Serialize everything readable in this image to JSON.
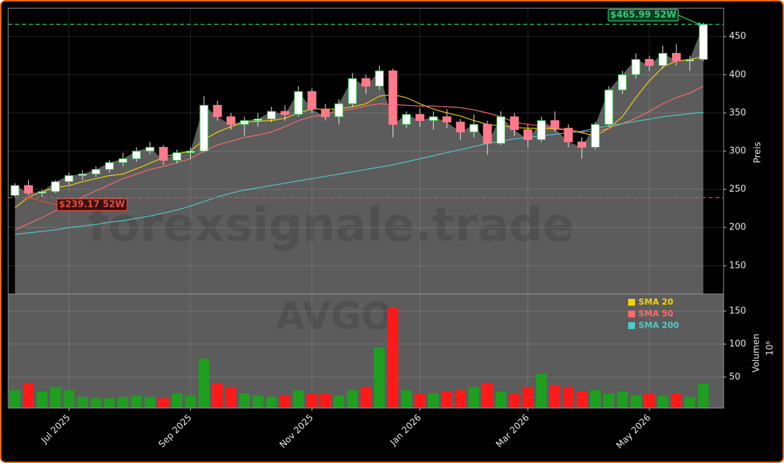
{
  "chart_data": [
    {
      "type": "candlestick",
      "watermark": "forexsignale.trade",
      "y_label": "Preis",
      "ylim": [
        113,
        487
      ],
      "yticks": [
        150,
        200,
        250,
        300,
        350,
        400,
        450
      ],
      "grid": true,
      "up_color": "#2fbf4a",
      "down_color": "#ff7a8a",
      "area_color": "#5c5c5c",
      "open": [
        242,
        255,
        245,
        247,
        260,
        268,
        270,
        276,
        285,
        290,
        300,
        305,
        288,
        298,
        300,
        360,
        345,
        335,
        340,
        342,
        352,
        348,
        378,
        355,
        345,
        362,
        395,
        385,
        405,
        335,
        348,
        340,
        345,
        338,
        325,
        335,
        310,
        345,
        328,
        315,
        340,
        330,
        312,
        305,
        335,
        380,
        400,
        420,
        412,
        428,
        418,
        420,
        null
      ],
      "high": [
        258,
        262,
        250,
        262,
        272,
        275,
        280,
        288,
        298,
        305,
        312,
        308,
        302,
        305,
        372,
        366,
        350,
        345,
        350,
        358,
        360,
        385,
        382,
        362,
        368,
        402,
        400,
        412,
        408,
        352,
        356,
        352,
        355,
        342,
        348,
        340,
        352,
        350,
        335,
        345,
        352,
        335,
        318,
        338,
        385,
        405,
        428,
        425,
        438,
        440,
        425,
        468,
        null
      ],
      "low": [
        240,
        242,
        240,
        245,
        256,
        262,
        266,
        272,
        280,
        286,
        296,
        282,
        284,
        290,
        298,
        340,
        328,
        320,
        332,
        338,
        340,
        345,
        350,
        340,
        335,
        358,
        375,
        380,
        318,
        330,
        332,
        328,
        330,
        315,
        318,
        295,
        308,
        320,
        305,
        312,
        325,
        305,
        290,
        302,
        332,
        375,
        395,
        405,
        408,
        412,
        405,
        418,
        null
      ],
      "close": [
        255,
        245,
        247,
        260,
        268,
        270,
        276,
        285,
        290,
        300,
        305,
        288,
        298,
        300,
        360,
        345,
        335,
        340,
        342,
        352,
        348,
        378,
        355,
        345,
        362,
        395,
        385,
        405,
        335,
        348,
        340,
        345,
        338,
        325,
        335,
        310,
        345,
        328,
        315,
        340,
        330,
        312,
        305,
        335,
        380,
        400,
        420,
        412,
        428,
        418,
        420,
        466,
        null
      ],
      "series": [
        {
          "name": "SMA 20",
          "color": "#f5d400",
          "values": [
            226,
            240,
            247,
            252,
            255,
            260,
            264,
            268,
            270,
            277,
            284,
            292,
            297,
            300,
            315,
            325,
            332,
            338,
            339,
            340,
            343,
            350,
            355,
            355,
            355,
            358,
            362,
            372,
            374,
            370,
            362,
            355,
            350,
            346,
            340,
            335,
            333,
            331,
            330,
            330,
            329,
            328,
            324,
            320,
            330,
            345,
            370,
            392,
            410,
            418,
            420,
            424,
            null
          ]
        },
        {
          "name": "SMA 50",
          "color": "#ff6b6b",
          "values": [
            197,
            205,
            213,
            222,
            230,
            240,
            248,
            256,
            264,
            270,
            276,
            280,
            285,
            290,
            300,
            308,
            313,
            318,
            321,
            325,
            332,
            340,
            345,
            348,
            352,
            355,
            359,
            362,
            361,
            360,
            359,
            359,
            358,
            357,
            354,
            350,
            345,
            338,
            335,
            333,
            330,
            328,
            325,
            326,
            330,
            336,
            343,
            352,
            362,
            370,
            376,
            385,
            null
          ]
        },
        {
          "name": "SMA 200",
          "color": "#4ecdc4",
          "values": [
            191,
            193,
            195,
            197,
            200,
            202,
            204,
            207,
            209,
            212,
            215,
            219,
            223,
            228,
            234,
            240,
            245,
            249,
            252,
            255,
            258,
            261,
            264,
            267,
            270,
            273,
            276,
            279,
            282,
            286,
            290,
            294,
            298,
            302,
            306,
            310,
            313,
            316,
            318,
            320,
            322,
            324,
            326,
            330,
            333,
            336,
            339,
            342,
            345,
            347,
            349,
            351,
            null
          ]
        }
      ],
      "hlines": [
        {
          "value": 465.99,
          "label": "$465.99 52W",
          "color": "#2ecc71"
        },
        {
          "value": 239.17,
          "label": "$239.17 52W",
          "color": "#e74c3c"
        }
      ]
    },
    {
      "type": "bar",
      "watermark": "AVGO",
      "y_label": "Volumen",
      "y_unit": "10⁶",
      "ylim": [
        3,
        176
      ],
      "yticks": [
        50,
        100,
        150
      ],
      "grid": true,
      "up_color": "#1f9e1f",
      "down_color": "#ff1a1a",
      "legend": "upper right",
      "categories": [
        null,
        null,
        null,
        null,
        "Jul 2025",
        null,
        null,
        null,
        null,
        null,
        null,
        null,
        null,
        "Sep 2025",
        null,
        null,
        null,
        null,
        null,
        null,
        null,
        null,
        "Nov 2025",
        null,
        null,
        null,
        null,
        null,
        null,
        null,
        "Jan 2026",
        null,
        null,
        null,
        null,
        null,
        null,
        null,
        "Mar 2026",
        null,
        null,
        null,
        null,
        null,
        null,
        null,
        null,
        "May 2026",
        null,
        null,
        null,
        null,
        null
      ],
      "values": [
        30,
        40,
        28,
        35,
        30,
        20,
        18,
        18,
        20,
        22,
        20,
        18,
        25,
        22,
        78,
        40,
        35,
        25,
        22,
        20,
        22,
        30,
        25,
        25,
        22,
        30,
        35,
        95,
        155,
        30,
        25,
        25,
        28,
        30,
        35,
        40,
        28,
        25,
        35,
        55,
        38,
        35,
        28,
        30,
        25,
        28,
        22,
        25,
        22,
        25,
        20,
        40,
        null
      ]
    }
  ]
}
